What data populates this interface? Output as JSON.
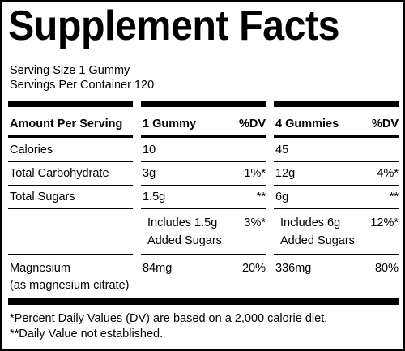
{
  "title": "Supplement Facts",
  "serving_size": "Serving Size 1 Gummy",
  "servings_per_container": "Servings Per Container 120",
  "header": {
    "amount_per_serving": "Amount Per Serving",
    "col1_label": "1 Gummy",
    "col1_dv": "%DV",
    "col2_label": "4 Gummies",
    "col2_dv": "%DV"
  },
  "rows": [
    {
      "name": "Calories",
      "name2": "",
      "v1": "10",
      "dv1": "",
      "v2": "45",
      "dv2": ""
    },
    {
      "name": "Total Carbohydrate",
      "name2": "",
      "v1": "3g",
      "dv1": "1%*",
      "v2": "12g",
      "dv2": "4%*"
    },
    {
      "name": "Total Sugars",
      "name2": "",
      "v1": "1.5g",
      "dv1": "**",
      "v2": "6g",
      "dv2": "**"
    },
    {
      "name": "",
      "name2": "",
      "v1": "Includes 1.5g",
      "v1b": "Added Sugars",
      "dv1": "3%*",
      "v2": "Includes 6g",
      "v2b": "Added Sugars",
      "dv2": "12%*"
    },
    {
      "name": "Magnesium",
      "name2": "(as magnesium citrate)",
      "v1": "84mg",
      "dv1": "20%",
      "v2": "336mg",
      "dv2": "80%"
    }
  ],
  "footnotes": [
    "*Percent Daily Values (DV) are based on a 2,000 calorie diet.",
    "**Daily Value not established."
  ]
}
